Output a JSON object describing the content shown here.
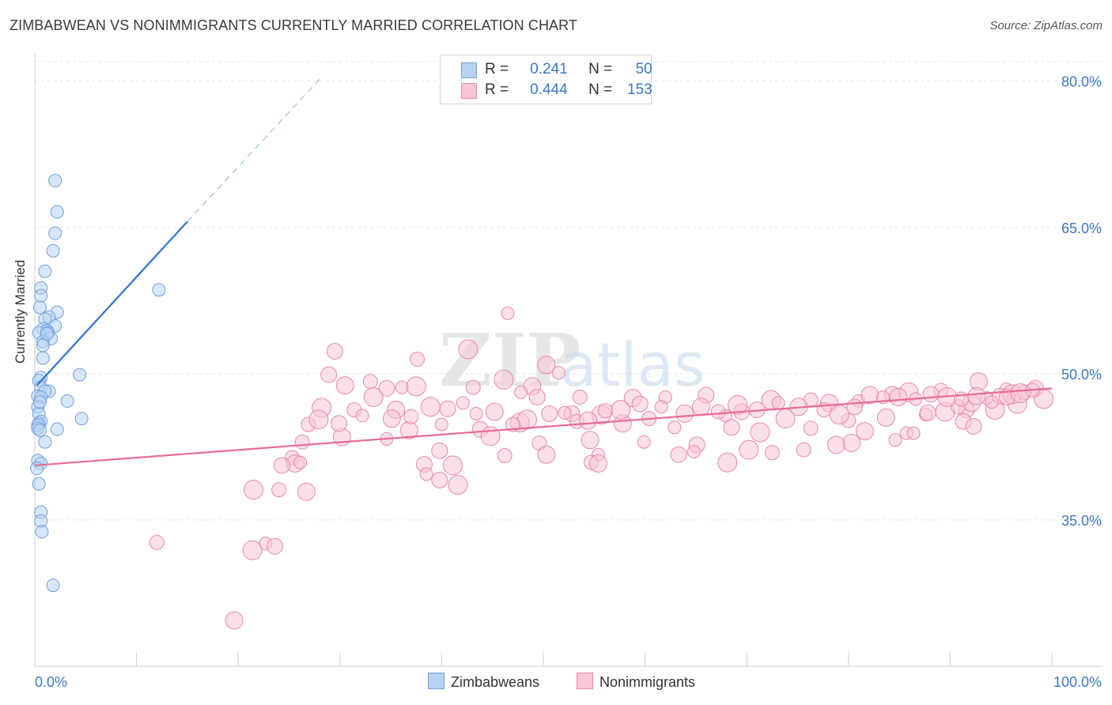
{
  "title": "ZIMBABWEAN VS NONIMMIGRANTS CURRENTLY MARRIED CORRELATION CHART",
  "source": "Source: ZipAtlas.com",
  "watermark": {
    "zip": "ZIP",
    "atlas": "atlas"
  },
  "legend": {
    "zimbabweans": {
      "r_label": "R =",
      "r_value": "0.241",
      "n_label": "N =",
      "n_value": "50"
    },
    "nonimmigrants": {
      "r_label": "R =",
      "r_value": "0.444",
      "n_label": "N =",
      "n_value": "153"
    }
  },
  "bottom_legend": {
    "zimbabweans": "Zimbabweans",
    "nonimmigrants": "Nonimmigrants"
  },
  "colors": {
    "blue_fill": "#b8d3f2",
    "blue_stroke": "#6fa0dd",
    "blue_line": "#2f73d0",
    "pink_fill": "#f7c6d5",
    "pink_stroke": "#e889a8",
    "pink_line": "#e8699a",
    "axis_label": "#3b78c4",
    "grid": "#e5e5e5"
  },
  "chart_data": {
    "type": "scatter",
    "title": "ZIMBABWEAN VS NONIMMIGRANTS CURRENTLY MARRIED CORRELATION CHART",
    "xlabel": "",
    "ylabel": "Currently Married",
    "xlim": [
      0,
      100
    ],
    "ylim": [
      20,
      82
    ],
    "x_tick_labels": [
      {
        "value": 0,
        "label": "0.0%"
      },
      {
        "value": 100,
        "label": "100.0%"
      }
    ],
    "y_tick_labels": [
      {
        "value": 35,
        "label": "35.0%"
      },
      {
        "value": 50,
        "label": "50.0%"
      },
      {
        "value": 65,
        "label": "65.0%"
      },
      {
        "value": 80,
        "label": "80.0%"
      }
    ],
    "series": [
      {
        "name": "Zimbabweans",
        "r": 0.241,
        "n": 50,
        "trend": {
          "x0": 0.2,
          "y0": 48.8,
          "x1": 15.0,
          "y1": 65.6,
          "dash_x1": 28.0,
          "dash_y1": 80.2
        },
        "points": [
          [
            2.0,
            69.8
          ],
          [
            2.2,
            66.6
          ],
          [
            2.0,
            64.4
          ],
          [
            1.8,
            62.6
          ],
          [
            1.0,
            60.5
          ],
          [
            0.6,
            58.8
          ],
          [
            0.6,
            58.0
          ],
          [
            0.5,
            56.8
          ],
          [
            2.2,
            56.3
          ],
          [
            1.4,
            55.8
          ],
          [
            1.0,
            55.6
          ],
          [
            2.0,
            54.9
          ],
          [
            0.8,
            54.6
          ],
          [
            1.2,
            54.4
          ],
          [
            1.3,
            54.2
          ],
          [
            0.4,
            54.2
          ],
          [
            1.6,
            53.6
          ],
          [
            0.8,
            53.3
          ],
          [
            0.8,
            51.6
          ],
          [
            0.6,
            49.6
          ],
          [
            4.4,
            49.9
          ],
          [
            0.4,
            49.3
          ],
          [
            0.6,
            48.6
          ],
          [
            1.4,
            48.2
          ],
          [
            1.0,
            48.2
          ],
          [
            0.3,
            47.7
          ],
          [
            0.6,
            47.6
          ],
          [
            3.2,
            47.2
          ],
          [
            0.3,
            46.6
          ],
          [
            0.4,
            45.9
          ],
          [
            4.6,
            45.4
          ],
          [
            0.6,
            45.1
          ],
          [
            0.4,
            44.9
          ],
          [
            0.3,
            44.7
          ],
          [
            0.3,
            44.4
          ],
          [
            2.2,
            44.3
          ],
          [
            0.5,
            44.2
          ],
          [
            1.0,
            43.0
          ],
          [
            0.3,
            41.1
          ],
          [
            0.6,
            40.8
          ],
          [
            0.2,
            40.3
          ],
          [
            0.4,
            38.7
          ],
          [
            0.6,
            35.8
          ],
          [
            0.6,
            34.9
          ],
          [
            0.7,
            33.8
          ],
          [
            1.8,
            28.3
          ],
          [
            12.2,
            58.6
          ],
          [
            1.2,
            54.1
          ],
          [
            0.8,
            52.9
          ],
          [
            0.5,
            47.1
          ]
        ]
      },
      {
        "name": "Nonimmigrants",
        "r": 0.444,
        "n": 153,
        "trend": {
          "x0": 0.0,
          "y0": 40.6,
          "x1": 100.0,
          "y1": 48.5
        },
        "points": [
          [
            46.5,
            56.2
          ],
          [
            29.5,
            52.3
          ],
          [
            42.6,
            52.5
          ],
          [
            37.6,
            51.5
          ],
          [
            50.3,
            50.9
          ],
          [
            51.5,
            50.1
          ],
          [
            28.9,
            49.9
          ],
          [
            46.1,
            49.4
          ],
          [
            33.0,
            49.2
          ],
          [
            30.5,
            48.8
          ],
          [
            36.1,
            48.6
          ],
          [
            34.6,
            48.5
          ],
          [
            37.5,
            48.7
          ],
          [
            43.1,
            48.6
          ],
          [
            48.9,
            48.7
          ],
          [
            47.8,
            48.1
          ],
          [
            49.4,
            47.6
          ],
          [
            33.3,
            47.6
          ],
          [
            53.6,
            47.6
          ],
          [
            58.8,
            47.5
          ],
          [
            62.0,
            47.6
          ],
          [
            66.0,
            47.8
          ],
          [
            72.4,
            47.3
          ],
          [
            76.3,
            47.3
          ],
          [
            78.1,
            47.0
          ],
          [
            81.0,
            47.2
          ],
          [
            84.3,
            47.9
          ],
          [
            85.9,
            48.1
          ],
          [
            89.1,
            48.3
          ],
          [
            92.8,
            49.2
          ],
          [
            95.5,
            48.4
          ],
          [
            98.4,
            48.5
          ],
          [
            28.2,
            46.5
          ],
          [
            31.4,
            46.3
          ],
          [
            35.5,
            46.3
          ],
          [
            43.4,
            45.9
          ],
          [
            52.8,
            45.9
          ],
          [
            55.7,
            45.8
          ],
          [
            60.4,
            45.4
          ],
          [
            63.9,
            45.9
          ],
          [
            67.9,
            45.7
          ],
          [
            69.5,
            46.1
          ],
          [
            73.8,
            45.4
          ],
          [
            80.0,
            45.2
          ],
          [
            83.7,
            45.5
          ],
          [
            87.6,
            45.8
          ],
          [
            91.6,
            46.3
          ],
          [
            96.6,
            46.9
          ],
          [
            26.9,
            44.8
          ],
          [
            36.8,
            44.2
          ],
          [
            40.0,
            44.8
          ],
          [
            43.8,
            44.3
          ],
          [
            47.7,
            45.0
          ],
          [
            53.3,
            45.1
          ],
          [
            57.8,
            44.9
          ],
          [
            62.9,
            44.5
          ],
          [
            68.5,
            44.5
          ],
          [
            71.3,
            44.0
          ],
          [
            76.3,
            44.4
          ],
          [
            81.6,
            44.1
          ],
          [
            85.7,
            43.9
          ],
          [
            91.3,
            45.1
          ],
          [
            94.4,
            46.3
          ],
          [
            26.3,
            43.0
          ],
          [
            30.2,
            43.5
          ],
          [
            34.6,
            43.3
          ],
          [
            39.8,
            42.1
          ],
          [
            44.8,
            43.6
          ],
          [
            49.6,
            42.9
          ],
          [
            54.6,
            43.2
          ],
          [
            59.9,
            43.0
          ],
          [
            65.1,
            42.7
          ],
          [
            70.2,
            42.2
          ],
          [
            75.6,
            42.2
          ],
          [
            80.3,
            42.9
          ],
          [
            86.4,
            43.9
          ],
          [
            92.3,
            44.6
          ],
          [
            99.2,
            47.4
          ],
          [
            25.3,
            41.4
          ],
          [
            25.6,
            40.8
          ],
          [
            26.1,
            40.9
          ],
          [
            38.3,
            40.7
          ],
          [
            41.1,
            40.6
          ],
          [
            46.2,
            41.6
          ],
          [
            50.3,
            41.7
          ],
          [
            55.4,
            41.7
          ],
          [
            63.3,
            41.7
          ],
          [
            68.1,
            40.9
          ],
          [
            72.5,
            41.9
          ],
          [
            78.8,
            42.7
          ],
          [
            84.6,
            43.2
          ],
          [
            24.3,
            40.6
          ],
          [
            21.5,
            38.1
          ],
          [
            24.0,
            38.1
          ],
          [
            26.7,
            37.9
          ],
          [
            38.5,
            39.7
          ],
          [
            39.8,
            39.1
          ],
          [
            41.6,
            38.6
          ],
          [
            54.7,
            40.9
          ],
          [
            55.4,
            40.8
          ],
          [
            22.7,
            32.6
          ],
          [
            23.6,
            32.3
          ],
          [
            21.4,
            31.9
          ],
          [
            12.0,
            32.7
          ],
          [
            19.6,
            24.7
          ],
          [
            64.8,
            42.0
          ],
          [
            87.8,
            46.0
          ],
          [
            89.5,
            46.1
          ],
          [
            90.8,
            46.6
          ],
          [
            92.1,
            47.0
          ],
          [
            93.6,
            47.5
          ],
          [
            94.9,
            47.7
          ],
          [
            96.1,
            47.9
          ],
          [
            97.3,
            48.1
          ],
          [
            84.9,
            47.6
          ],
          [
            86.6,
            47.4
          ],
          [
            88.1,
            47.9
          ],
          [
            89.7,
            47.6
          ],
          [
            91.1,
            47.4
          ],
          [
            92.6,
            47.7
          ],
          [
            94.1,
            47.1
          ],
          [
            95.6,
            47.6
          ],
          [
            96.9,
            48.0
          ],
          [
            98.1,
            48.3
          ],
          [
            82.1,
            47.8
          ],
          [
            83.4,
            47.6
          ],
          [
            80.6,
            46.6
          ],
          [
            79.1,
            45.8
          ],
          [
            77.6,
            46.3
          ],
          [
            75.1,
            46.6
          ],
          [
            73.1,
            47.0
          ],
          [
            71.0,
            46.3
          ],
          [
            69.1,
            46.8
          ],
          [
            67.2,
            46.1
          ],
          [
            65.5,
            46.6
          ],
          [
            61.6,
            46.6
          ],
          [
            59.5,
            46.9
          ],
          [
            57.6,
            46.3
          ],
          [
            56.1,
            46.2
          ],
          [
            54.4,
            45.2
          ],
          [
            52.1,
            46.0
          ],
          [
            50.6,
            45.9
          ],
          [
            48.4,
            45.3
          ],
          [
            47.0,
            44.8
          ],
          [
            45.2,
            46.1
          ],
          [
            42.1,
            47.0
          ],
          [
            40.6,
            46.4
          ],
          [
            38.9,
            46.6
          ],
          [
            37.0,
            45.6
          ],
          [
            35.1,
            45.4
          ],
          [
            32.2,
            45.7
          ],
          [
            29.9,
            44.9
          ],
          [
            27.9,
            45.3
          ]
        ]
      }
    ]
  }
}
